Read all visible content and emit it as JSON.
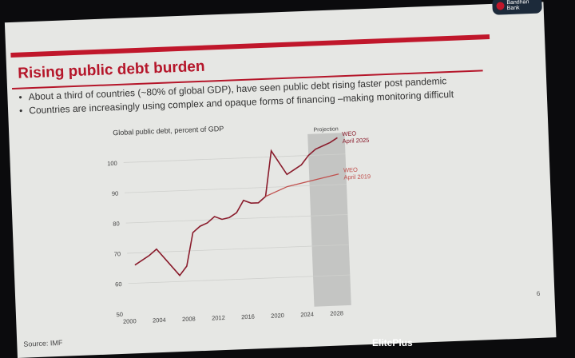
{
  "slide": {
    "title": "Rising public debt burden",
    "bullets": [
      "About a third of countries (~80% of global GDP), have seen public debt rising faster post pandemic",
      "Countries are increasingly using complex and opaque forms of financing –making monitoring difficult"
    ],
    "source": "Source: IMF",
    "page_number": "6",
    "logo_text": "Bandhan Bank",
    "footer_brand": "ElitePlus"
  },
  "colors": {
    "accent": "#c0172b",
    "line2025": "#8a1c2c",
    "line2019": "#c0504d",
    "projection": "#c4c5c3"
  },
  "chart_data": {
    "type": "line",
    "title": "Global public debt, percent of GDP",
    "xlabel": "",
    "ylabel": "",
    "xlim": [
      2000,
      2030
    ],
    "ylim": [
      50,
      106
    ],
    "yticks": [
      50,
      60,
      70,
      80,
      90,
      100
    ],
    "xticks": [
      2000,
      2004,
      2008,
      2012,
      2016,
      2020,
      2024,
      2028
    ],
    "projection": {
      "label": "Projection",
      "from": 2025,
      "to": 2030
    },
    "series": [
      {
        "name": "WEO April 2025",
        "label_line1": "WEO",
        "label_line2": "April 2025",
        "x": [
          2001,
          2002,
          2003,
          2004,
          2005,
          2006,
          2007,
          2008,
          2009,
          2010,
          2011,
          2012,
          2013,
          2014,
          2015,
          2016,
          2017,
          2018,
          2019,
          2020,
          2021,
          2022,
          2023,
          2024,
          2025,
          2026,
          2027,
          2028,
          2029
        ],
        "values": [
          66,
          67.5,
          69,
          71,
          68,
          65,
          62,
          65,
          76,
          78,
          79,
          81,
          80,
          80.5,
          82,
          86,
          85,
          85,
          87,
          102,
          98,
          94,
          95.5,
          97,
          100,
          102,
          103,
          104,
          105.5
        ]
      },
      {
        "name": "WEO April 2019",
        "label_line1": "WEO",
        "label_line2": "April 2019",
        "x": [
          2019,
          2020,
          2021,
          2022,
          2023,
          2024,
          2025,
          2026,
          2027,
          2028,
          2029
        ],
        "values": [
          87,
          88,
          89,
          90,
          90.5,
          91,
          91.5,
          92,
          92.5,
          93,
          93.5
        ]
      }
    ]
  }
}
